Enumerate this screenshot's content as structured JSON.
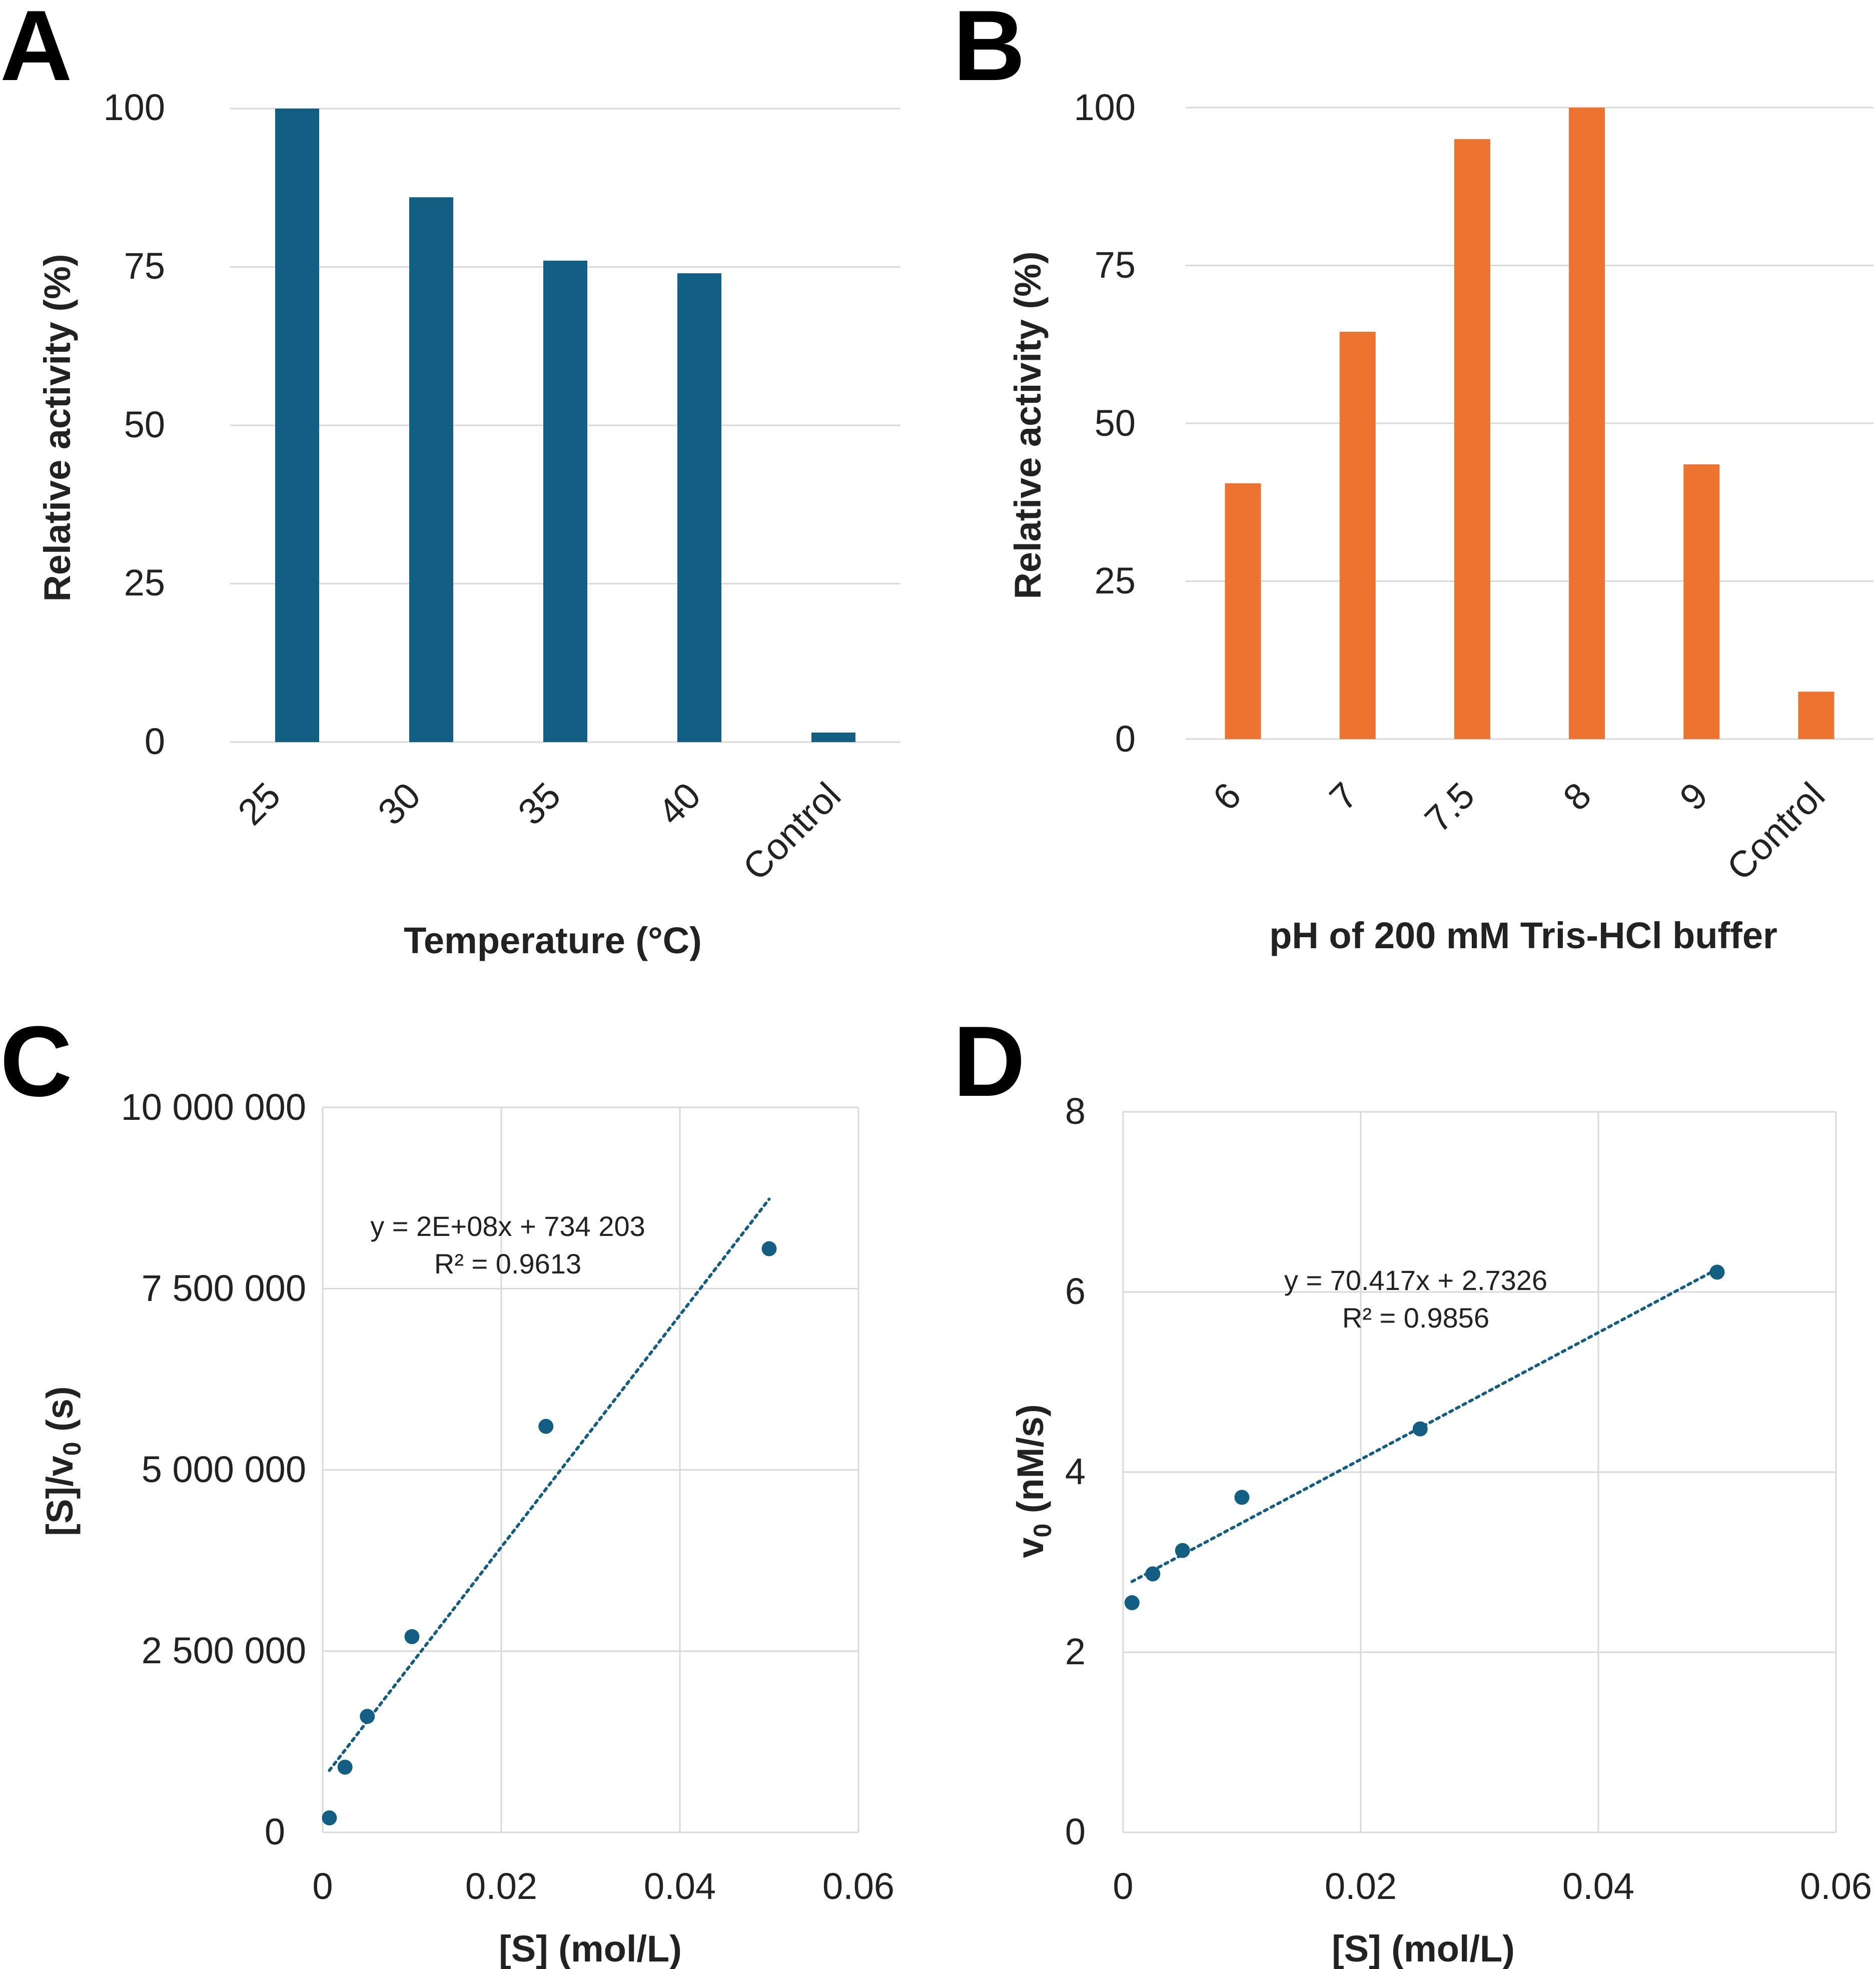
{
  "chart_data": [
    {
      "panel": "A",
      "type": "bar",
      "categories": [
        "25",
        "30",
        "35",
        "40",
        "Control"
      ],
      "values": [
        100,
        86,
        76,
        74,
        1.5
      ],
      "color": "#135e83",
      "xlabel": "Temperature (°C)",
      "ylabel": "Relative activity (%)",
      "ylim": [
        0,
        100
      ],
      "yticks": [
        "0",
        "25",
        "50",
        "75",
        "100"
      ],
      "grid": true
    },
    {
      "panel": "B",
      "type": "bar",
      "categories": [
        "6",
        "7",
        "7.5",
        "8",
        "9",
        "Control"
      ],
      "values": [
        40.5,
        64.5,
        95,
        100,
        43.5,
        7.5
      ],
      "color": "#ed7330",
      "xlabel": "pH of 200 mM Tris-HCl buffer",
      "ylabel": "Relative activity (%)",
      "ylim": [
        0,
        100
      ],
      "yticks": [
        "0",
        "25",
        "50",
        "75",
        "100"
      ],
      "grid": true
    },
    {
      "panel": "C",
      "type": "scatter",
      "x": [
        0.00075,
        0.0025,
        0.005,
        0.01,
        0.025,
        0.05
      ],
      "y": [
        200000,
        900000,
        1600000,
        2700000,
        5600000,
        8050000
      ],
      "color": "#135e83",
      "trendline": {
        "slope": 160000000,
        "intercept": 734203
      },
      "equation": "y = 2E+08x + 734 203",
      "r_squared": "R² = 0.9613",
      "xlabel": "[S] (mol/L)",
      "ylabel": "[S]/v0 (s)",
      "ylabel_main": "[S]/v",
      "ylabel_sub": "0",
      "ylabel_tail": " (s)",
      "xlim": [
        0,
        0.06
      ],
      "ylim": [
        0,
        10000000
      ],
      "xticks": [
        "0",
        "0.02",
        "0.04",
        "0.06"
      ],
      "yticks": [
        "0",
        "2 500 000",
        "5 000 000",
        "7 500 000",
        "10 000 000"
      ],
      "grid": true
    },
    {
      "panel": "D",
      "type": "scatter",
      "x": [
        0.00075,
        0.0025,
        0.005,
        0.01,
        0.025,
        0.05
      ],
      "y": [
        2.55,
        2.87,
        3.13,
        3.72,
        4.48,
        6.22
      ],
      "color": "#135e83",
      "trendline": {
        "slope": 70.417,
        "intercept": 2.7326
      },
      "equation": "y = 70.417x + 2.7326",
      "r_squared": "R² = 0.9856",
      "xlabel": "[S] (mol/L)",
      "ylabel": "v0 (nM/s)",
      "ylabel_main": "v",
      "ylabel_sub": "0",
      "ylabel_tail": " (nM/s)",
      "xlim": [
        0,
        0.06
      ],
      "ylim": [
        0,
        8
      ],
      "xticks": [
        "0",
        "0.02",
        "0.04",
        "0.06"
      ],
      "yticks": [
        "0",
        "2",
        "4",
        "6",
        "8"
      ],
      "grid": true
    }
  ]
}
